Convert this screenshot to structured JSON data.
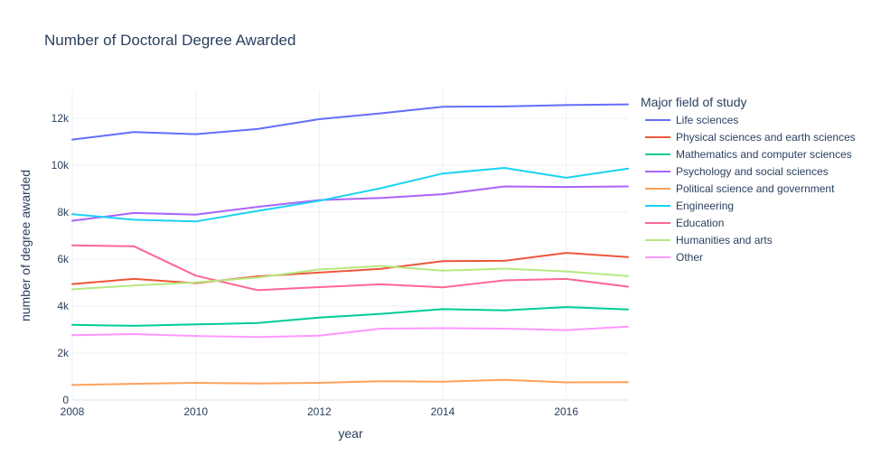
{
  "chart_data": {
    "type": "line",
    "title": "Number of Doctoral Degree Awarded",
    "xlabel": "year",
    "ylabel": "number of degree awarded",
    "xlim": [
      2008,
      2017
    ],
    "ylim": [
      0,
      13200
    ],
    "x_ticks": [
      2008,
      2010,
      2012,
      2014,
      2016
    ],
    "y_ticks": [
      0,
      2000,
      4000,
      6000,
      8000,
      10000,
      12000
    ],
    "y_tick_labels": [
      "0",
      "2k",
      "4k",
      "6k",
      "8k",
      "10k",
      "12k"
    ],
    "grid": true,
    "legend": {
      "title": "Major field of study",
      "placement": "right"
    },
    "x": [
      2008,
      2009,
      2010,
      2011,
      2012,
      2013,
      2014,
      2015,
      2016,
      2017
    ],
    "series": [
      {
        "name": "Life sciences",
        "color": "#636efa",
        "values": [
          11100,
          11420,
          11330,
          11550,
          11970,
          12220,
          12500,
          12510,
          12570,
          12600
        ]
      },
      {
        "name": "Physical sciences and earth sciences",
        "color": "#EF553B",
        "values": [
          4940,
          5160,
          4980,
          5270,
          5430,
          5590,
          5920,
          5930,
          6270,
          6090
        ]
      },
      {
        "name": "Mathematics and computer sciences",
        "color": "#00cc96",
        "values": [
          3200,
          3160,
          3220,
          3280,
          3510,
          3670,
          3870,
          3820,
          3960,
          3860
        ]
      },
      {
        "name": "Psychology and social sciences",
        "color": "#ab63fa",
        "values": [
          7640,
          7970,
          7900,
          8230,
          8520,
          8610,
          8770,
          9100,
          9080,
          9100
        ]
      },
      {
        "name": "Political science and government",
        "color": "#FFA15A",
        "values": [
          640,
          690,
          730,
          700,
          730,
          800,
          780,
          860,
          750,
          760
        ]
      },
      {
        "name": "Engineering",
        "color": "#19d3f3",
        "values": [
          7920,
          7680,
          7610,
          8060,
          8490,
          9030,
          9650,
          9890,
          9470,
          9860
        ]
      },
      {
        "name": "Education",
        "color": "#FF6692",
        "values": [
          6590,
          6550,
          5300,
          4680,
          4810,
          4930,
          4800,
          5100,
          5160,
          4830
        ]
      },
      {
        "name": "Humanities and arts",
        "color": "#B6E880",
        "values": [
          4720,
          4880,
          5010,
          5220,
          5560,
          5710,
          5510,
          5600,
          5480,
          5280
        ]
      },
      {
        "name": "Other",
        "color": "#FF97FF",
        "values": [
          2760,
          2810,
          2730,
          2680,
          2740,
          3040,
          3060,
          3040,
          2980,
          3130
        ]
      }
    ]
  }
}
